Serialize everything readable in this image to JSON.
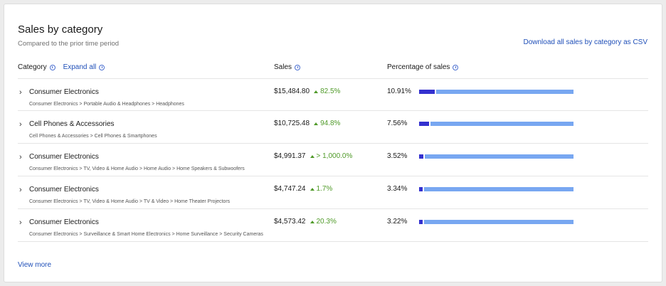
{
  "header": {
    "title": "Sales by category",
    "subtitle": "Compared to the prior time period",
    "download_label": "Download all sales by category as CSV"
  },
  "columns": {
    "category": "Category",
    "expand_all": "Expand all",
    "sales": "Sales",
    "percentage": "Percentage of sales"
  },
  "rows": [
    {
      "name": "Consumer Electronics",
      "path": "Consumer Electronics > Portable Audio & Headphones > Headphones",
      "sales": "$15,484.80",
      "change": "82.5%",
      "pct": "10.91%",
      "pct_value": 10.91
    },
    {
      "name": "Cell Phones & Accessories",
      "path": "Cell Phones & Accessories > Cell Phones & Smartphones",
      "sales": "$10,725.48",
      "change": "94.8%",
      "pct": "7.56%",
      "pct_value": 7.56
    },
    {
      "name": "Consumer Electronics",
      "path": "Consumer Electronics > TV, Video & Home Audio > Home Audio > Home Speakers & Subwoofers",
      "sales": "$4,991.37",
      "change": "> 1,000.0%",
      "pct": "3.52%",
      "pct_value": 3.52
    },
    {
      "name": "Consumer Electronics",
      "path": "Consumer Electronics > TV, Video & Home Audio > TV & Video > Home Theater Projectors",
      "sales": "$4,747.24",
      "change": "1.7%",
      "pct": "3.34%",
      "pct_value": 3.34
    },
    {
      "name": "Consumer Electronics",
      "path": "Consumer Electronics > Surveillance & Smart Home Electronics > Home Surveillance > Security Cameras",
      "sales": "$4,573.42",
      "change": "20.3%",
      "pct": "3.22%",
      "pct_value": 3.22
    }
  ],
  "footer": {
    "view_more": "View more"
  },
  "colors": {
    "link": "#1f4fb8",
    "positive": "#4f9a28",
    "bar_fill": "#3431cf",
    "bar_track": "#78a7f1"
  },
  "icons": {
    "info": "info-icon",
    "row_expand": "chevron-right-icon",
    "change_up": "triangle-up-icon"
  }
}
